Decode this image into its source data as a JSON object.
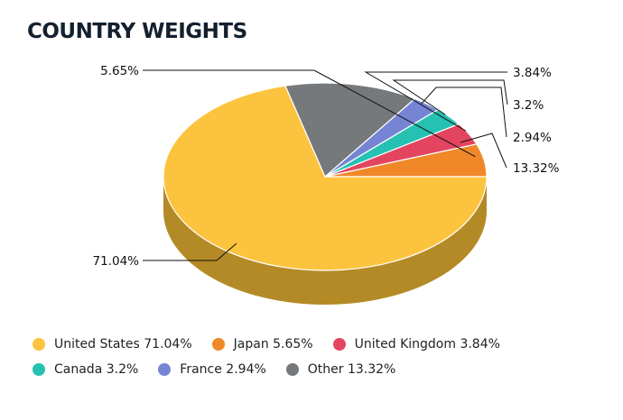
{
  "title": "COUNTRY WEIGHTS",
  "chart_data": {
    "type": "pie",
    "title": "COUNTRY WEIGHTS",
    "legend": "bottom",
    "slices": [
      {
        "name": "United States",
        "value": 71.04,
        "label": "71.04%",
        "legend": "United States 71.04%",
        "color": "#fcc43e",
        "side": "#b38a26"
      },
      {
        "name": "Japan",
        "value": 5.65,
        "label": "5.65%",
        "legend": "Japan 5.65%",
        "color": "#f0882a",
        "side": "#a65e1d"
      },
      {
        "name": "United Kingdom",
        "value": 3.84,
        "label": "3.84%",
        "legend": "United Kingdom 3.84%",
        "color": "#e3445f",
        "side": "#9e2f42"
      },
      {
        "name": "Canada",
        "value": 3.2,
        "label": "3.2%",
        "legend": "Canada 3.2%",
        "color": "#25c1b2",
        "side": "#1a877c"
      },
      {
        "name": "France",
        "value": 2.94,
        "label": "2.94%",
        "legend": "France 2.94%",
        "color": "#7585d4",
        "side": "#525d94"
      },
      {
        "name": "Other",
        "value": 13.32,
        "label": "13.32%",
        "legend": "Other 13.32%",
        "color": "#75797b",
        "side": "#525556"
      }
    ]
  }
}
